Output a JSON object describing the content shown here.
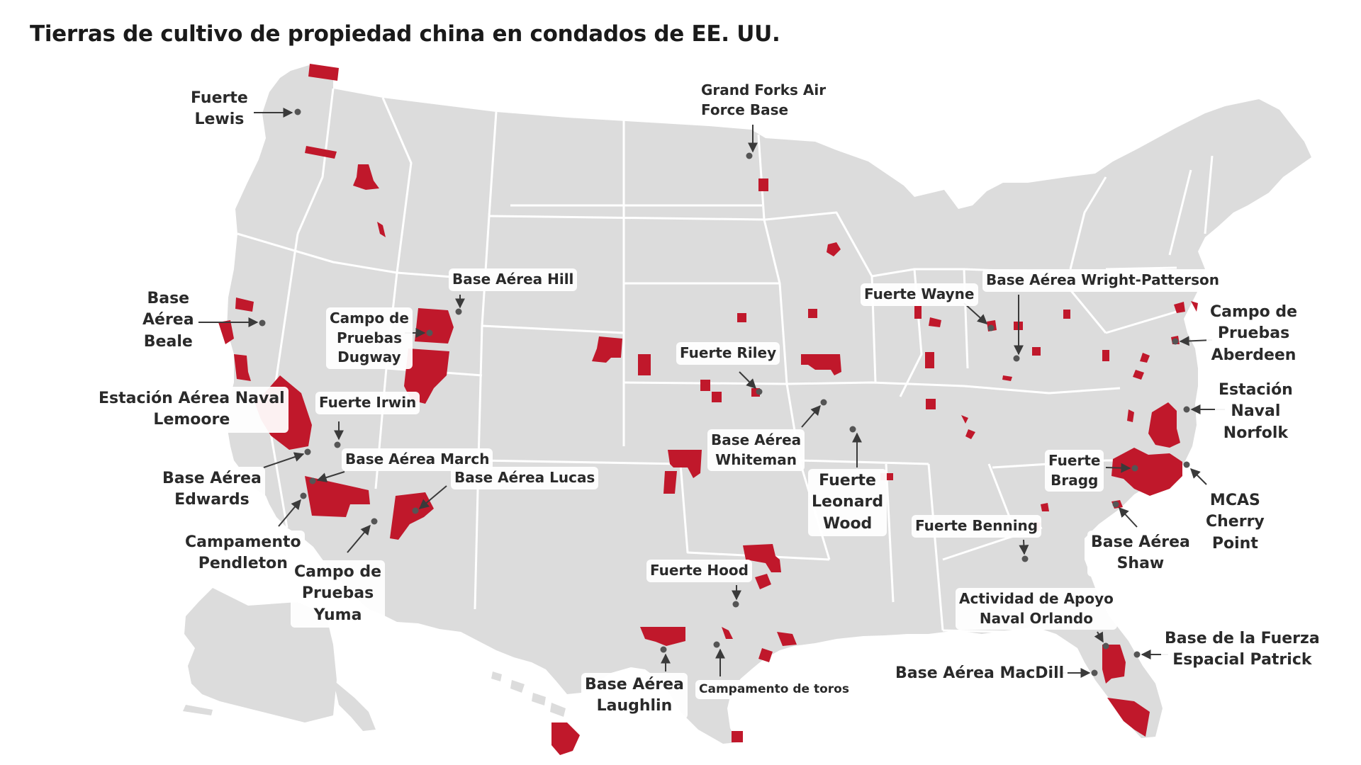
{
  "title": "Tierras de cultivo de propiedad china en condados de EE. UU.",
  "colors": {
    "land": "#dcdcdc",
    "border": "#ffffff",
    "farmland": "#c0182b",
    "site": "#555555",
    "arrow": "#3a3a3a"
  },
  "site_marker_icon": "gray-dot-icon",
  "sites": [
    {
      "id": "fort-lewis",
      "lines": [
        "Fuerte",
        "Lewis"
      ]
    },
    {
      "id": "grand-forks",
      "lines": [
        "Grand Forks Air",
        "Force Base"
      ]
    },
    {
      "id": "beale",
      "lines": [
        "Base",
        "Aérea",
        "Beale"
      ]
    },
    {
      "id": "dugway",
      "lines": [
        "Campo de",
        "Pruebas",
        "Dugway"
      ]
    },
    {
      "id": "hill",
      "lines": [
        "Base Aérea Hill"
      ]
    },
    {
      "id": "lemoore",
      "lines": [
        "Estación Aérea Naval",
        "Lemoore"
      ]
    },
    {
      "id": "irwin",
      "lines": [
        "Fuerte Irwin"
      ]
    },
    {
      "id": "edwards",
      "lines": [
        "Base Aérea",
        "Edwards"
      ]
    },
    {
      "id": "march",
      "lines": [
        "Base Aérea March"
      ]
    },
    {
      "id": "luke",
      "lines": [
        "Base Aérea Lucas"
      ]
    },
    {
      "id": "pendleton",
      "lines": [
        "Campamento",
        "Pendleton"
      ]
    },
    {
      "id": "yuma",
      "lines": [
        "Campo de",
        "Pruebas",
        "Yuma"
      ]
    },
    {
      "id": "riley",
      "lines": [
        "Fuerte Riley"
      ]
    },
    {
      "id": "whiteman",
      "lines": [
        "Base Aérea",
        "Whiteman"
      ]
    },
    {
      "id": "leonard-wood",
      "lines": [
        "Fuerte",
        "Leonard",
        "Wood"
      ]
    },
    {
      "id": "hood",
      "lines": [
        "Fuerte Hood"
      ]
    },
    {
      "id": "laughlin",
      "lines": [
        "Base Aérea",
        "Laughlin"
      ]
    },
    {
      "id": "bull",
      "lines": [
        "Campamento de toros"
      ]
    },
    {
      "id": "wayne",
      "lines": [
        "Fuerte Wayne"
      ]
    },
    {
      "id": "wright-patterson",
      "lines": [
        "Base Aérea Wright-Patterson"
      ]
    },
    {
      "id": "aberdeen",
      "lines": [
        "Campo de",
        "Pruebas",
        "Aberdeen"
      ]
    },
    {
      "id": "norfolk",
      "lines": [
        "Estación",
        "Naval",
        "Norfolk"
      ]
    },
    {
      "id": "bragg",
      "lines": [
        "Fuerte",
        "Bragg"
      ]
    },
    {
      "id": "cherry-point",
      "lines": [
        "MCAS",
        "Cherry",
        "Point"
      ]
    },
    {
      "id": "benning",
      "lines": [
        "Fuerte Benning"
      ]
    },
    {
      "id": "shaw",
      "lines": [
        "Base Aérea",
        "Shaw"
      ]
    },
    {
      "id": "orlando",
      "lines": [
        "Actividad de Apoyo",
        "Naval Orlando"
      ]
    },
    {
      "id": "patrick",
      "lines": [
        "Base de la Fuerza",
        "Espacial Patrick"
      ]
    },
    {
      "id": "macdill",
      "lines": [
        "Base Aérea MacDill"
      ]
    }
  ]
}
